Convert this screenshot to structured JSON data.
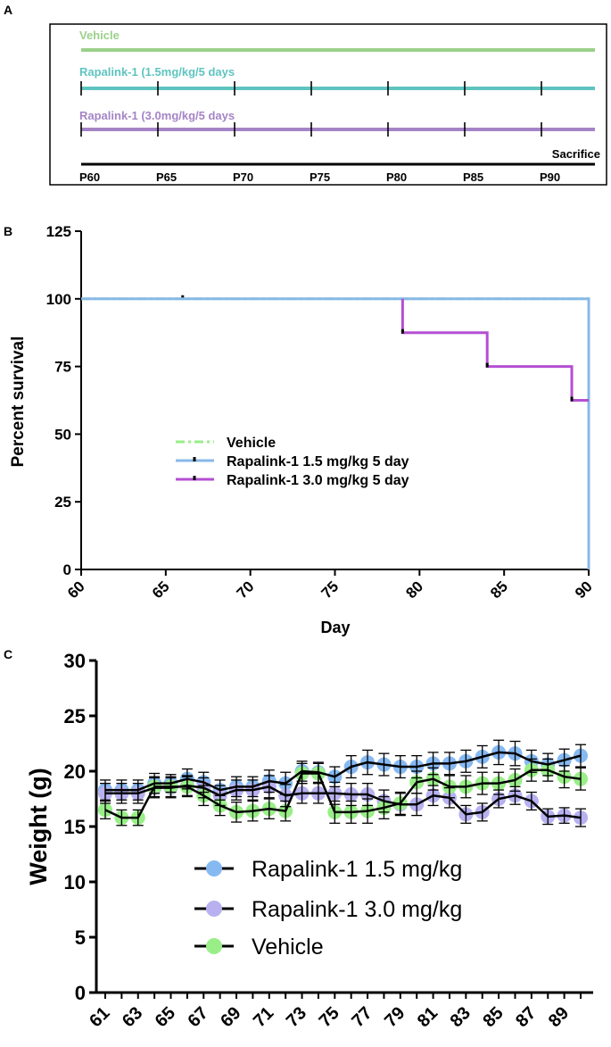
{
  "panels": {
    "a": {
      "letter": "A",
      "regimens": [
        {
          "label": "Vehicle",
          "color": "#9bd08a",
          "ticks": false
        },
        {
          "label": "Rapalink-1 (1.5mg/kg/5 days",
          "color": "#5ec4c0",
          "ticks": true
        },
        {
          "label": "Rapalink-1 (3.0mg/kg/5 days",
          "color": "#a584c6",
          "ticks": true
        }
      ],
      "timeline_color": "#000000",
      "sacrifice_label": "Sacrifice",
      "days": [
        "P60",
        "P65",
        "P70",
        "P75",
        "P80",
        "P85",
        "P90"
      ]
    },
    "b": {
      "letter": "B"
    },
    "c": {
      "letter": "C"
    }
  },
  "chart_data": [
    {
      "type": "line",
      "panel": "B",
      "title": "",
      "xlabel": "Day",
      "ylabel": "Percent survival",
      "xlim": [
        60,
        90
      ],
      "ylim": [
        0,
        125
      ],
      "xticks": [
        "60",
        "65",
        "70",
        "75",
        "80",
        "85",
        "90"
      ],
      "yticks": [
        "0",
        "25",
        "50",
        "75",
        "100",
        "125"
      ],
      "step": true,
      "legend_position": "center-left",
      "series": [
        {
          "name": "Vehicle",
          "color": "#99ee88",
          "style": "dash-dot",
          "points": [
            [
              60,
              100
            ],
            [
              90,
              100
            ],
            [
              90,
              0
            ]
          ],
          "censored": [
            [
              66,
              100
            ]
          ]
        },
        {
          "name": "Rapalink-1 1.5 mg/kg 5 day",
          "color": "#88b8e8",
          "style": "solid",
          "points": [
            [
              60,
              100
            ],
            [
              90,
              100
            ],
            [
              90,
              0
            ]
          ],
          "censored": []
        },
        {
          "name": "Rapalink-1 3.0 mg/kg 5 day",
          "color": "#b44fd2",
          "style": "solid",
          "points": [
            [
              79,
              100
            ],
            [
              79,
              87.5
            ],
            [
              84,
              87.5
            ],
            [
              84,
              75
            ],
            [
              89,
              75
            ],
            [
              89,
              62.5
            ],
            [
              90,
              62.5
            ]
          ],
          "censored": [
            [
              79,
              87.5
            ],
            [
              84,
              75
            ],
            [
              89,
              62.5
            ]
          ]
        }
      ]
    },
    {
      "type": "line",
      "panel": "C",
      "title": "",
      "xlabel": "",
      "ylabel": "Weight (g)",
      "ylim": [
        0,
        30
      ],
      "yticks": [
        "0",
        "5",
        "10",
        "15",
        "20",
        "25",
        "30"
      ],
      "x": [
        61,
        62,
        63,
        64,
        65,
        66,
        67,
        68,
        69,
        70,
        71,
        72,
        73,
        74,
        75,
        76,
        77,
        78,
        79,
        80,
        81,
        82,
        83,
        84,
        85,
        86,
        87,
        88,
        89,
        90
      ],
      "xtick_labels": [
        "61",
        "63",
        "65",
        "67",
        "69",
        "71",
        "73",
        "75",
        "77",
        "79",
        "81",
        "83",
        "85",
        "87",
        "89"
      ],
      "legend_position": "bottom-center",
      "line_color": "#000000",
      "series": [
        {
          "name": "Rapalink-1 1.5 mg/kg",
          "color": "#86b9f2",
          "values": [
            18.3,
            18.3,
            18.3,
            18.9,
            18.9,
            19.3,
            19.0,
            18.3,
            18.6,
            18.6,
            19.1,
            18.9,
            20.0,
            19.9,
            19.5,
            20.4,
            20.8,
            20.6,
            20.4,
            20.4,
            20.7,
            20.7,
            20.9,
            21.3,
            21.7,
            21.6,
            20.9,
            20.6,
            21.0,
            21.4
          ],
          "errors": [
            0.9,
            0.9,
            0.9,
            0.9,
            0.8,
            0.9,
            0.9,
            0.9,
            0.9,
            0.9,
            1.0,
            1.0,
            0.9,
            0.9,
            0.9,
            1.0,
            1.1,
            1.0,
            1.0,
            1.0,
            1.0,
            1.0,
            1.0,
            1.0,
            1.1,
            1.1,
            1.0,
            1.0,
            1.0,
            1.0
          ]
        },
        {
          "name": "Rapalink-1 3.0 mg/kg",
          "color": "#b7b1f0",
          "values": [
            18.0,
            18.0,
            18.0,
            18.5,
            18.5,
            18.7,
            18.5,
            17.8,
            18.3,
            18.3,
            18.6,
            17.8,
            18.0,
            18.0,
            18.0,
            17.9,
            17.9,
            17.3,
            17.0,
            17.0,
            17.8,
            17.6,
            16.1,
            16.3,
            17.5,
            17.8,
            17.3,
            15.9,
            16.0,
            15.8
          ],
          "errors": [
            0.9,
            0.9,
            0.9,
            0.9,
            0.9,
            0.9,
            0.9,
            0.9,
            0.9,
            0.9,
            1.0,
            1.0,
            0.9,
            0.9,
            1.0,
            1.0,
            1.0,
            1.0,
            1.0,
            1.0,
            0.9,
            0.9,
            0.8,
            0.8,
            0.8,
            0.8,
            0.8,
            0.7,
            0.7,
            0.8
          ]
        },
        {
          "name": "Vehicle",
          "color": "#99ee88",
          "values": [
            16.5,
            15.8,
            15.8,
            18.6,
            18.6,
            18.6,
            17.8,
            16.9,
            16.3,
            16.4,
            16.6,
            16.4,
            19.8,
            19.8,
            16.3,
            16.3,
            16.4,
            16.7,
            17.1,
            19.0,
            19.3,
            18.6,
            18.6,
            18.9,
            18.9,
            19.2,
            20.1,
            20.1,
            19.5,
            19.3
          ],
          "errors": [
            0.8,
            0.7,
            0.7,
            0.9,
            0.9,
            0.9,
            0.9,
            0.9,
            0.9,
            0.9,
            0.9,
            0.9,
            0.9,
            0.9,
            1.0,
            1.0,
            1.1,
            1.0,
            1.0,
            1.0,
            1.0,
            1.0,
            1.0,
            1.0,
            1.0,
            1.0,
            1.0,
            1.0,
            1.0,
            1.0
          ]
        }
      ]
    }
  ]
}
